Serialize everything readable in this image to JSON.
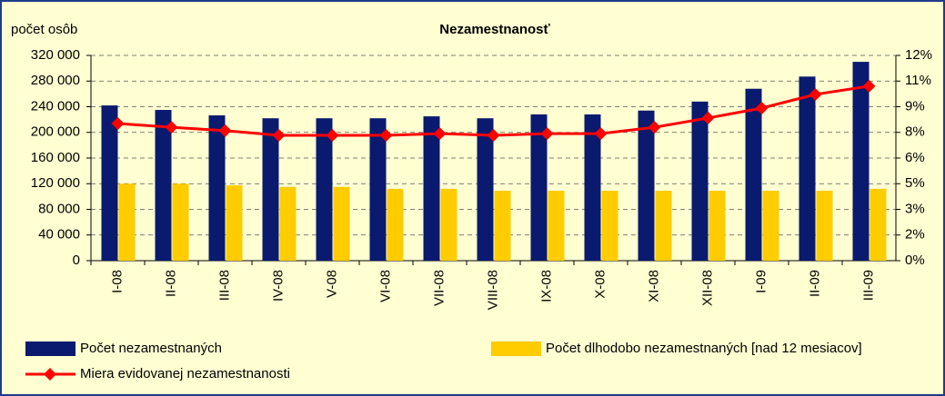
{
  "chart_data": {
    "type": "bar-line",
    "title": "Nezamestnanosť",
    "y_axis_label": "počet osôb",
    "categories": [
      "I-08",
      "II-08",
      "III-08",
      "IV-08",
      "V-08",
      "VI-08",
      "VII-08",
      "VIII-08",
      "IX-08",
      "X-08",
      "XI-08",
      "XII-08",
      "I-09",
      "II-09",
      "III-09"
    ],
    "series": [
      {
        "name": "Počet nezamestnaných",
        "kind": "bar",
        "color": "#0a1a6e",
        "values": [
          242000,
          235000,
          226500,
          222000,
          222000,
          222000,
          225000,
          222000,
          228000,
          228000,
          234000,
          248000,
          268000,
          287000,
          310000
        ]
      },
      {
        "name": "Počet dlhodobo nezamestnaných [nad 12 mesiacov]",
        "kind": "bar",
        "color": "#ffcc00",
        "values": [
          120000,
          120000,
          117500,
          115000,
          115000,
          112000,
          112000,
          109000,
          109000,
          109000,
          109000,
          109000,
          109000,
          109000,
          112000
        ]
      },
      {
        "name": "Miera evidovanej nezamestnanosti",
        "kind": "line",
        "color": "#ff0000",
        "axis": "y2",
        "values": [
          8.02,
          7.8,
          7.6,
          7.33,
          7.33,
          7.33,
          7.43,
          7.33,
          7.43,
          7.43,
          7.8,
          8.34,
          8.92,
          9.72,
          10.2
        ]
      }
    ],
    "ylim": [
      0,
      320000
    ],
    "yticks": [
      0,
      {
        "value": 40000,
        "label": "40 000"
      },
      {
        "value": 80000,
        "label": "80 000"
      },
      {
        "value": 120000,
        "label": "120 000"
      },
      {
        "value": 160000,
        "label": "160 000"
      },
      {
        "value": 200000,
        "label": "200 000"
      },
      {
        "value": 240000,
        "label": "240 000"
      },
      {
        "value": 280000,
        "label": "280 000"
      },
      {
        "value": 320000,
        "label": "320 000"
      }
    ],
    "y2lim": [
      0,
      12
    ],
    "y2ticks": [
      {
        "value": 0,
        "label": "0%"
      },
      {
        "value": 1.5,
        "label": "2%"
      },
      {
        "value": 3,
        "label": "3%"
      },
      {
        "value": 4.5,
        "label": "5%"
      },
      {
        "value": 6,
        "label": "6%"
      },
      {
        "value": 7.5,
        "label": "8%"
      },
      {
        "value": 9,
        "label": "9%"
      },
      {
        "value": 10.5,
        "label": "11%"
      },
      {
        "value": 12,
        "label": "12%"
      }
    ],
    "grid": true,
    "legend": "bottom"
  }
}
